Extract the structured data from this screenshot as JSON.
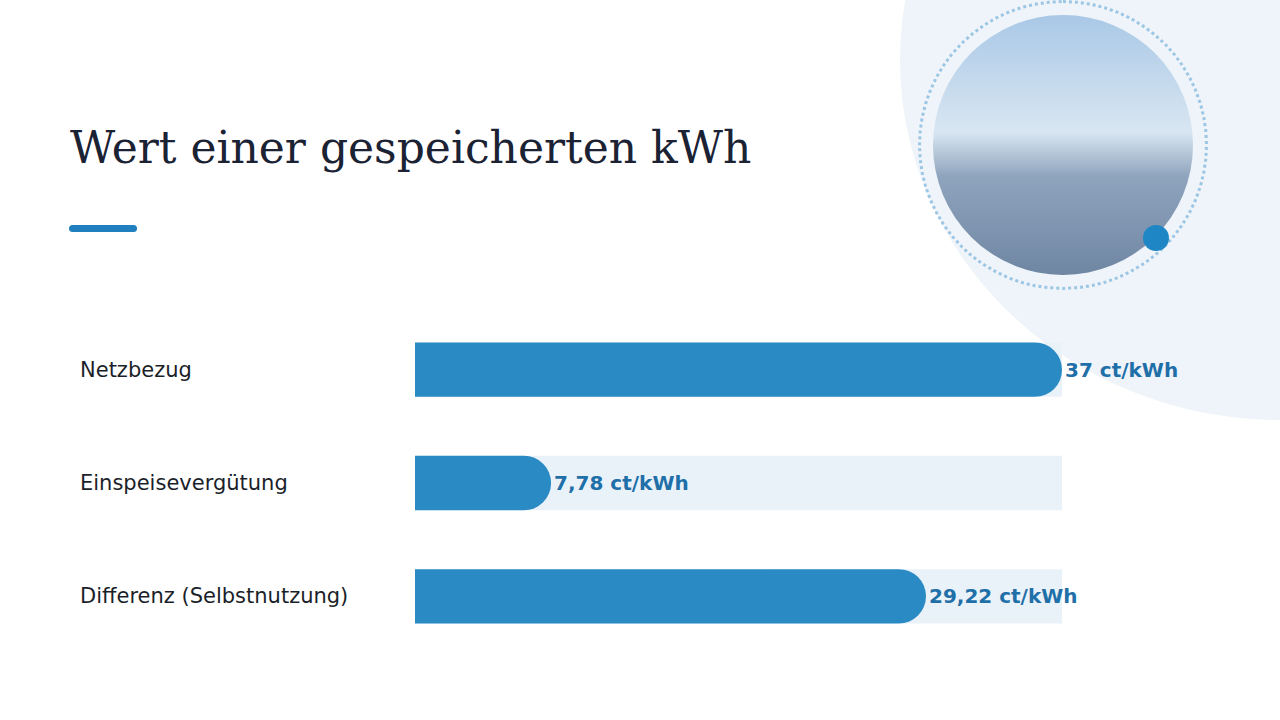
{
  "chart_data": {
    "type": "bar",
    "orientation": "horizontal",
    "title": "Wert einer gespeicherten kWh",
    "categories": [
      "Netzbezug",
      "Einspeisevergütung",
      "Differenz (Selbstnutzung)"
    ],
    "values": [
      37,
      7.78,
      29.22
    ],
    "value_labels": [
      "37 ct/kWh",
      "7,78 ct/kWh",
      "29,22 ct/kWh"
    ],
    "data_labels": true,
    "color": "#2a8bc4",
    "xlim": [
      0,
      37
    ],
    "tick_labels": false,
    "grid": false
  }
}
